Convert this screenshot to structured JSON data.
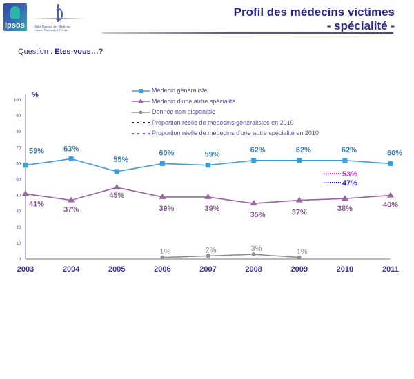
{
  "header": {
    "title_line1": "Profil des médecins victimes",
    "title_line2": "- spécialité -",
    "logo_ipsos_text": "Ipsos",
    "logo_onm_line1": "Ordre National des Médecins",
    "logo_onm_line2": "Conseil National de l'Ordre"
  },
  "question": {
    "label": "Question : ",
    "text": "Etes-vous…?"
  },
  "colors": {
    "generaliste": "#3d9fdc",
    "generaliste_label": "#3a7fb0",
    "autre": "#9b64a3",
    "autre_label": "#8a5a95",
    "nd": "#8f8f8f",
    "nd_label": "#8f8f8f",
    "prop_gen": "#2a14e0",
    "prop_autre": "#e61ee6",
    "axis": "#8d86c8",
    "axis_text": "#3a2f9a",
    "legend_text": "#5a4f9a"
  },
  "chart_data": {
    "type": "line",
    "title": "Profil des médecins victimes - spécialité -",
    "ylabel": "%",
    "xlabel": "",
    "ylim": [
      0,
      100
    ],
    "yticks": [
      0,
      10,
      20,
      30,
      40,
      50,
      60,
      70,
      80,
      90,
      100
    ],
    "categories": [
      "2003",
      "2004",
      "2005",
      "2006",
      "2007",
      "2008",
      "2009",
      "2010",
      "2011"
    ],
    "series": [
      {
        "name": "Médecin généraliste",
        "marker": "square",
        "values": [
          59,
          63,
          55,
          60,
          59,
          62,
          62,
          62,
          60
        ],
        "labels": [
          "59%",
          "63%",
          "55%",
          "60%",
          "59%",
          "62%",
          "62%",
          "62%",
          "60%"
        ]
      },
      {
        "name": "Médecin d'une autre spécialité",
        "marker": "triangle",
        "values": [
          41,
          37,
          45,
          39,
          39,
          35,
          37,
          38,
          40
        ],
        "labels": [
          "41%",
          "37%",
          "45%",
          "39%",
          "39%",
          "35%",
          "37%",
          "38%",
          "40%"
        ]
      },
      {
        "name": "Donnée non disponible",
        "marker": "circle",
        "values": [
          null,
          null,
          null,
          1,
          2,
          3,
          1,
          null,
          null
        ],
        "labels": [
          null,
          null,
          null,
          "1%",
          "2%",
          "3%",
          "1%",
          null,
          null
        ]
      }
    ],
    "reference_markers": [
      {
        "name": "Proportion réelle de médecins généralistes en 2010",
        "category": "2010",
        "value": 47,
        "label": "47%"
      },
      {
        "name": "Proportion réelle de médecins d'une autre spécialité en 2010",
        "category": "2010",
        "value": 53,
        "label": "53%"
      }
    ],
    "legend_position": "top-center",
    "grid": false
  }
}
